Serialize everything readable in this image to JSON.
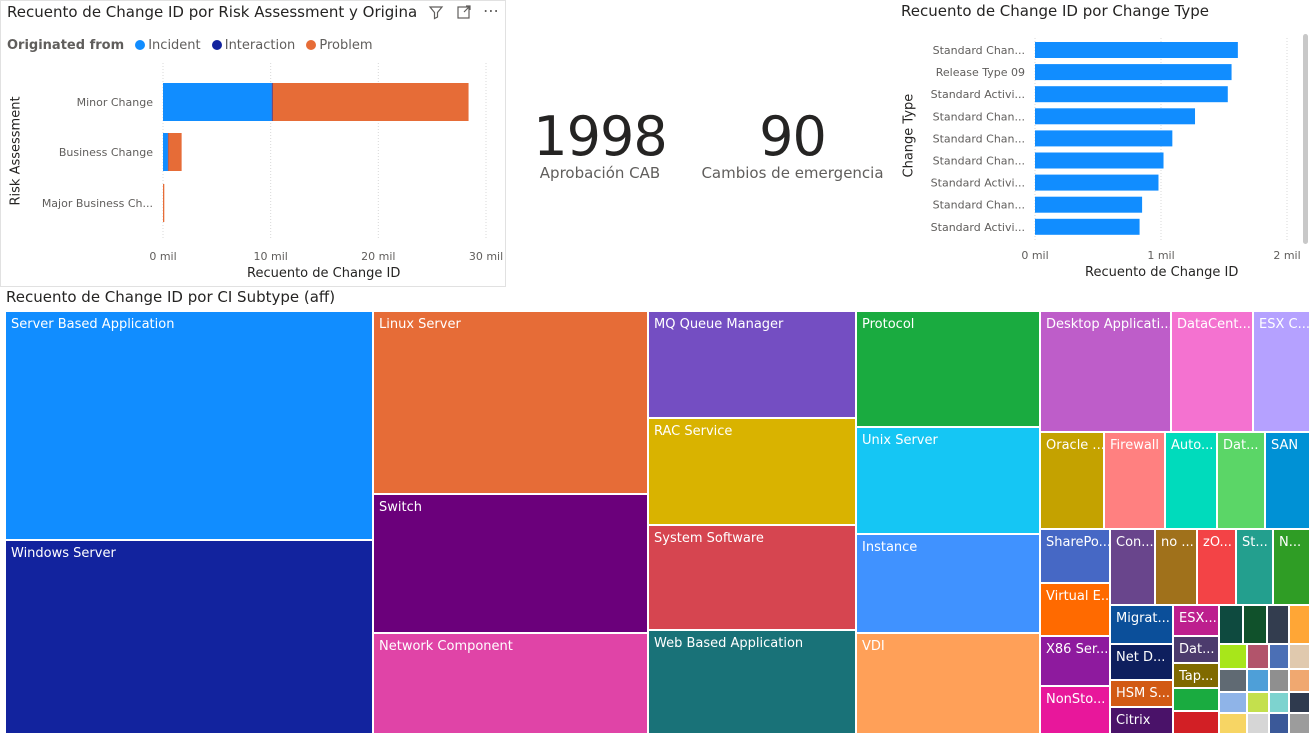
{
  "risk_chart": {
    "title": "Recuento de Change ID por Risk Assessment y Origina",
    "legend_title": "Originated from",
    "legend": [
      {
        "name": "Incident",
        "color": "#118DFF"
      },
      {
        "name": "Interaction",
        "color": "#12239E"
      },
      {
        "name": "Problem",
        "color": "#E66C37"
      }
    ],
    "ylabel": "Risk Assessment",
    "xlabel": "Recuento de Change ID",
    "x_ticks": [
      "0 mil",
      "10 mil",
      "20 mil",
      "30 mil"
    ]
  },
  "kpis": [
    {
      "value": "1998",
      "label": "Aprobación CAB"
    },
    {
      "value": "90",
      "label": "Cambios de emergencia"
    }
  ],
  "change_type_chart": {
    "title": "Recuento de Change ID por Change Type",
    "ylabel": "Change Type",
    "xlabel": "Recuento de Change ID",
    "x_ticks": [
      "0 mil",
      "1 mil",
      "2 mil"
    ]
  },
  "treemap": {
    "title": "Recuento de Change ID por CI Subtype (aff)"
  },
  "chart_data": [
    {
      "type": "bar",
      "orientation": "horizontal",
      "stacked": true,
      "title": "Recuento de Change ID por Risk Assessment y Origina",
      "categories": [
        "Minor Change",
        "Business Change",
        "Major Business Ch..."
      ],
      "series": [
        {
          "name": "Incident",
          "values": [
            10100,
            450,
            0
          ]
        },
        {
          "name": "Interaction",
          "values": [
            80,
            30,
            0
          ]
        },
        {
          "name": "Problem",
          "values": [
            18200,
            1250,
            120
          ]
        }
      ],
      "xlabel": "Recuento de Change ID",
      "ylabel": "Risk Assessment",
      "xlim": [
        0,
        32000
      ],
      "grid": true,
      "legend": "top-left"
    },
    {
      "type": "bar",
      "orientation": "horizontal",
      "title": "Recuento de Change ID por Change Type",
      "categories": [
        "Standard Chan...",
        "Release Type 09",
        "Standard Activi...",
        "Standard Chan...",
        "Standard Chan...",
        "Standard Chan...",
        "Standard Activi...",
        "Standard Chan...",
        "Standard Activi..."
      ],
      "values": [
        1610,
        1560,
        1530,
        1270,
        1090,
        1020,
        980,
        850,
        830
      ],
      "xlabel": "Recuento de Change ID",
      "ylabel": "Change Type",
      "xlim": [
        0,
        2100
      ],
      "grid": true
    },
    {
      "type": "treemap",
      "title": "Recuento de Change ID por CI Subtype (aff)",
      "items": [
        {
          "label": "Server Based Application",
          "color": "#118DFF"
        },
        {
          "label": "Windows Server",
          "color": "#12239E"
        },
        {
          "label": "Linux Server",
          "color": "#E66C37"
        },
        {
          "label": "Switch",
          "color": "#6B007B"
        },
        {
          "label": "Network Component",
          "color": "#E044A7"
        },
        {
          "label": "MQ Queue Manager",
          "color": "#744EC2"
        },
        {
          "label": "RAC Service",
          "color": "#D9B300"
        },
        {
          "label": "System Software",
          "color": "#D64550"
        },
        {
          "label": "Web Based Application",
          "color": "#197278"
        },
        {
          "label": "Protocol",
          "color": "#1AAB40"
        },
        {
          "label": "Unix Server",
          "color": "#15C6F4"
        },
        {
          "label": "Instance",
          "color": "#4092FF"
        },
        {
          "label": "VDI",
          "color": "#FFA058"
        },
        {
          "label": "Desktop Applicati...",
          "color": "#BE5DC9"
        },
        {
          "label": "DataCent...",
          "color": "#F472D0"
        },
        {
          "label": "ESX C...",
          "color": "#B5A1FF"
        },
        {
          "label": "Oracle ...",
          "color": "#C4A200"
        },
        {
          "label": "Firewall",
          "color": "#FF8080"
        },
        {
          "label": "Auto...",
          "color": "#00DBBC"
        },
        {
          "label": "Dat...",
          "color": "#5BD667"
        },
        {
          "label": "SAN",
          "color": "#0091D5"
        },
        {
          "label": "SharePo...",
          "color": "#4668C5"
        },
        {
          "label": "Con...",
          "color": "#69458C"
        },
        {
          "label": "no ...",
          "color": "#A0711B"
        },
        {
          "label": "zO...",
          "color": "#F34346"
        },
        {
          "label": "St...",
          "color": "#239F8E"
        },
        {
          "label": "N...",
          "color": "#2F9D25"
        },
        {
          "label": "Virtual E...",
          "color": "#FF6A00"
        },
        {
          "label": "X86 Ser...",
          "color": "#8E1A9E"
        },
        {
          "label": "NonSto...",
          "color": "#E8179B"
        },
        {
          "label": "Migrat...",
          "color": "#0B4F9A"
        },
        {
          "label": "Net D...",
          "color": "#0E1F5E"
        },
        {
          "label": "HSM S...",
          "color": "#D25A14"
        },
        {
          "label": "Citrix",
          "color": "#4A1269"
        },
        {
          "label": "ESX...",
          "color": "#BD1F8E"
        },
        {
          "label": "Dat...",
          "color": "#4C3B6D"
        },
        {
          "label": "Tap...",
          "color": "#806A00"
        }
      ]
    }
  ]
}
